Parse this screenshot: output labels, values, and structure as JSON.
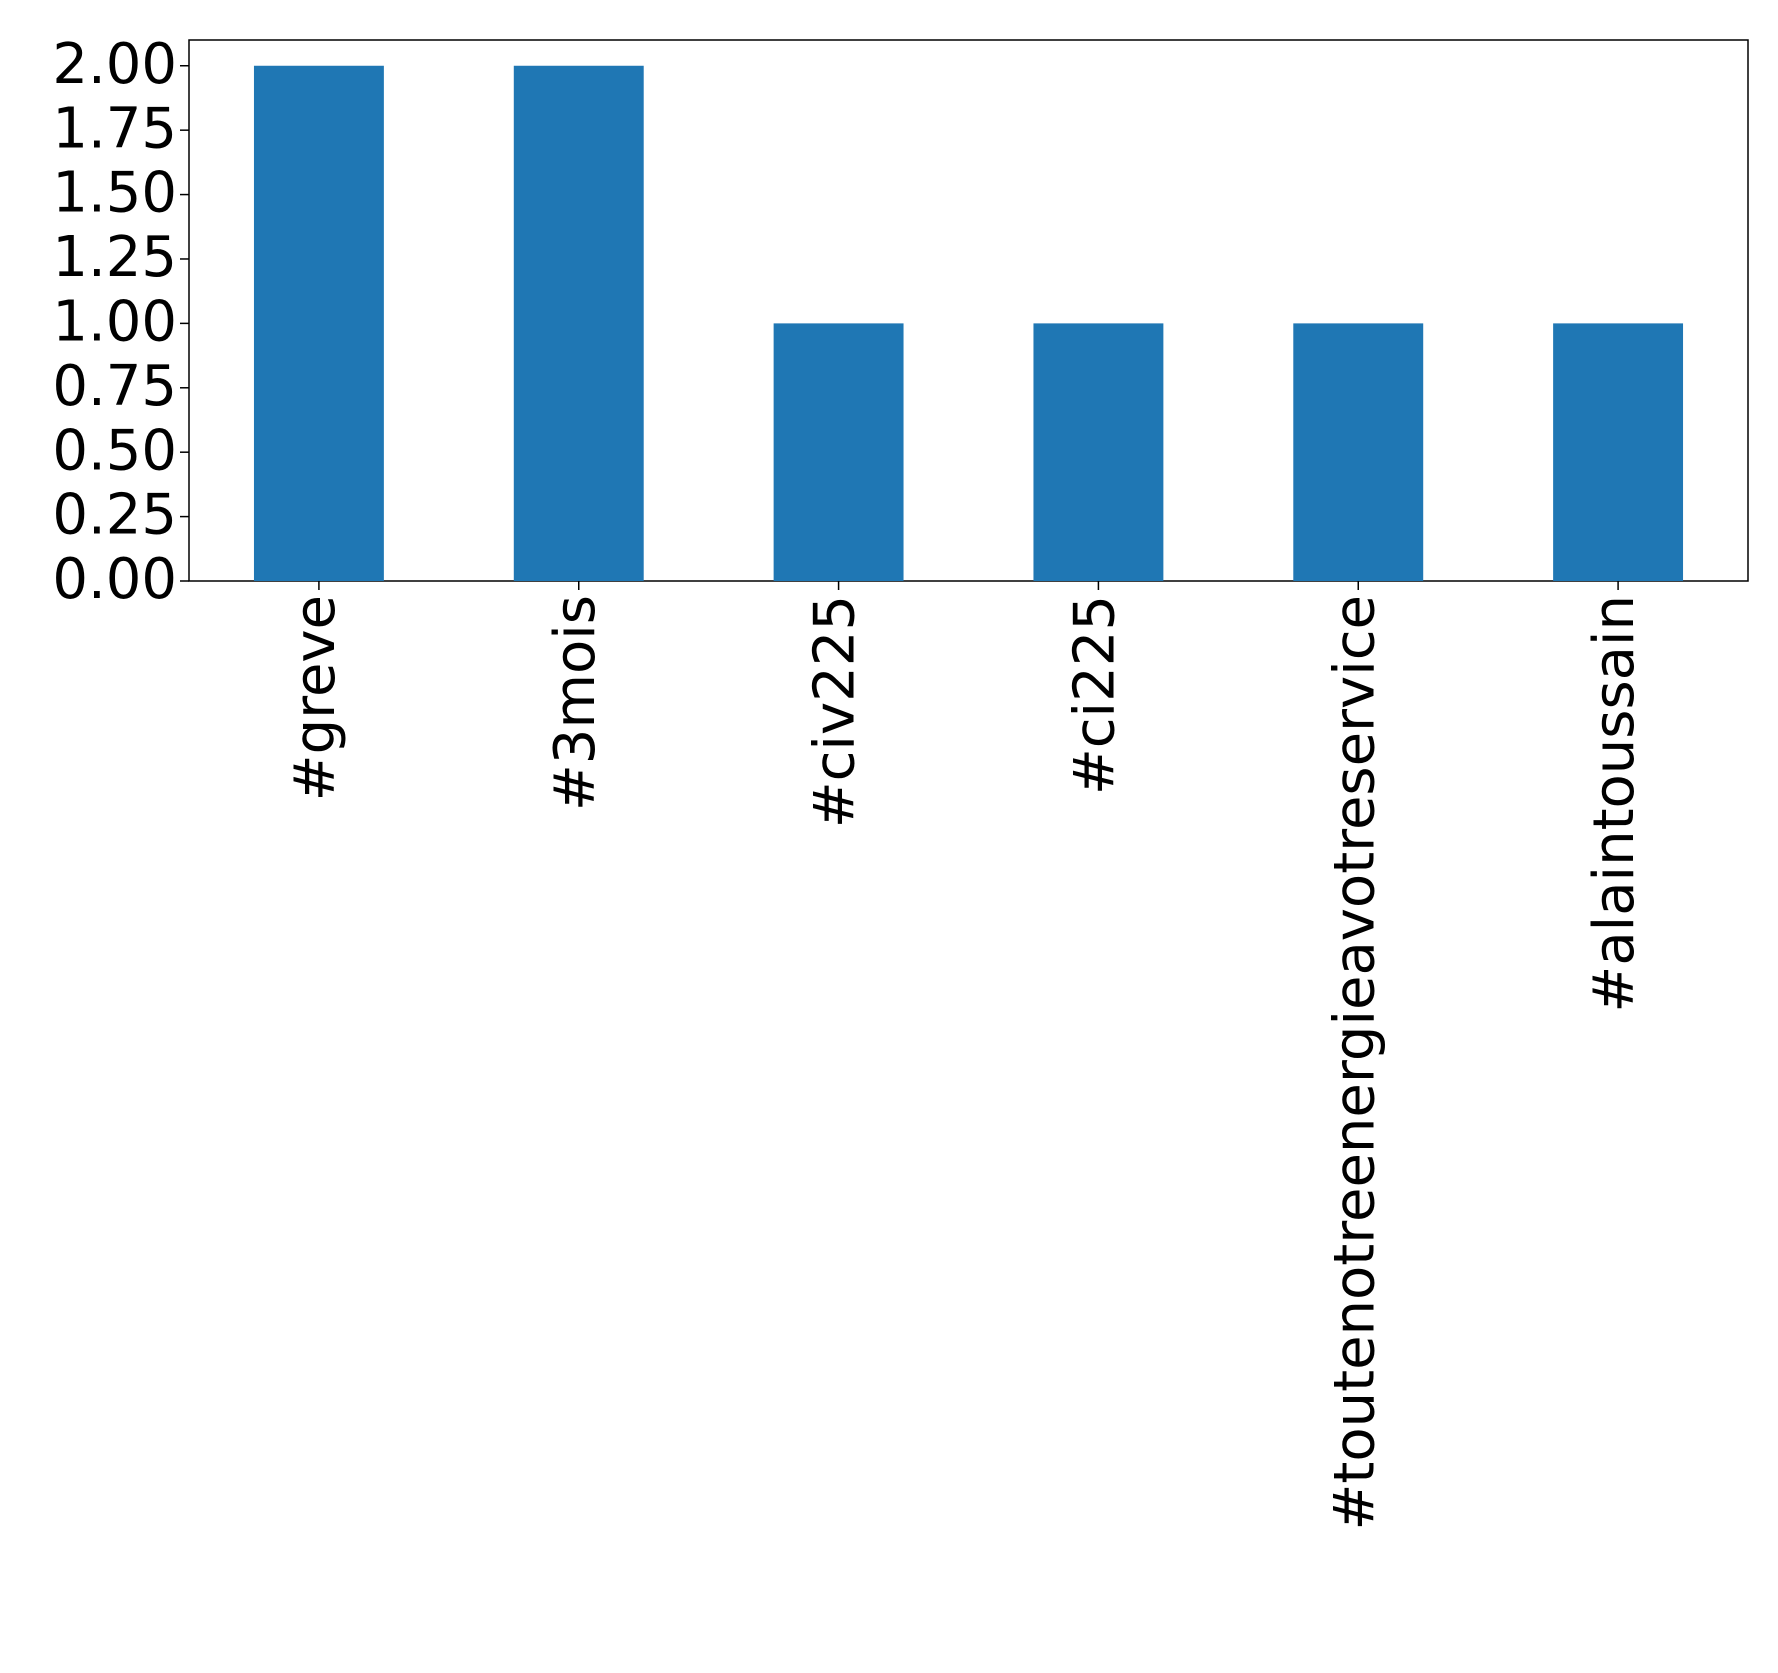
{
  "chart_data": {
    "type": "bar",
    "categories": [
      "#greve",
      "#3mois",
      "#civ225",
      "#ci225",
      "#toutenotreenergieavotreservice",
      "#alaintoussain"
    ],
    "values": [
      2,
      2,
      1,
      1,
      1,
      1
    ],
    "color": "#1f77b4",
    "ylim": [
      0,
      2.1
    ],
    "yticks": [
      {
        "value": 0,
        "label": "0.00"
      },
      {
        "value": 0.25,
        "label": "0.25"
      },
      {
        "value": 0.5,
        "label": "0.50"
      },
      {
        "value": 0.75,
        "label": "0.75"
      },
      {
        "value": 1,
        "label": "1.00"
      },
      {
        "value": 1.25,
        "label": "1.25"
      },
      {
        "value": 1.5,
        "label": "1.50"
      },
      {
        "value": 1.75,
        "label": "1.75"
      },
      {
        "value": 2,
        "label": "2.00"
      }
    ],
    "grid": false
  }
}
